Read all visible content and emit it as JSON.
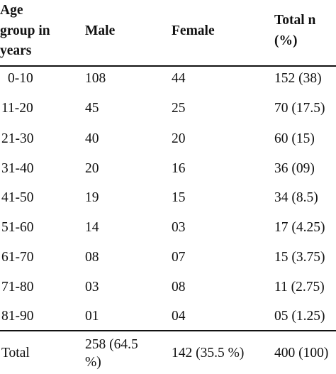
{
  "table": {
    "headers": {
      "age_line1": "Age",
      "age_line2": "group in",
      "age_line3": "years",
      "male": "Male",
      "female": "Female",
      "total_line1": "Total n",
      "total_line2": "(%)"
    },
    "rows": [
      {
        "age": "0-10",
        "male": "108",
        "female": "44",
        "total": "152 (38)"
      },
      {
        "age": "11-20",
        "male": "45",
        "female": "25",
        "total": "70 (17.5)"
      },
      {
        "age": "21-30",
        "male": "40",
        "female": "20",
        "total": "60 (15)"
      },
      {
        "age": "31-40",
        "male": "20",
        "female": "16",
        "total": "36 (09)"
      },
      {
        "age": "41-50",
        "male": "19",
        "female": "15",
        "total": "34 (8.5)"
      },
      {
        "age": "51-60",
        "male": "14",
        "female": "03",
        "total": "17 (4.25)"
      },
      {
        "age": "61-70",
        "male": "08",
        "female": "07",
        "total": "15 (3.75)"
      },
      {
        "age": "71-80",
        "male": "03",
        "female": "08",
        "total": "11 (2.75)"
      },
      {
        "age": "81-90",
        "male": "01",
        "female": "04",
        "total": "05 (1.25)"
      }
    ],
    "footer": {
      "label": "Total",
      "male_line1": "258 (64.5",
      "male_line2": "%)",
      "female": "142 (35.5 %)",
      "total": "400 (100)"
    }
  }
}
